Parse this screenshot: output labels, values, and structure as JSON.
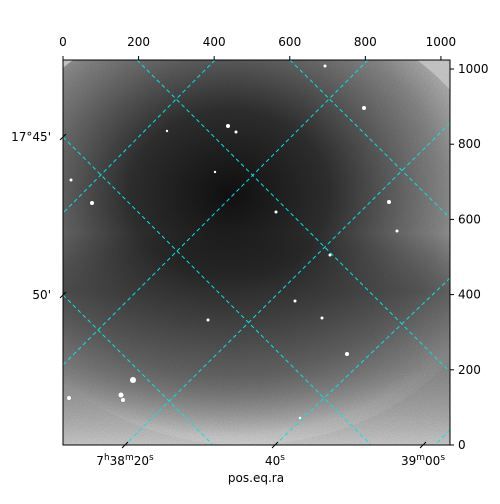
{
  "chart_data": {
    "type": "image",
    "xlabel": "pos.eq.ra",
    "x2lim": [
      0,
      1024
    ],
    "x2ticks": [
      0,
      200,
      400,
      600,
      800,
      1000
    ],
    "y2lim": [
      0,
      1024
    ],
    "y2ticks": [
      0,
      200,
      400,
      600,
      800,
      1000
    ],
    "ra_tick_labels": [
      "7h38m20s",
      "40s",
      "39m00s"
    ],
    "dec_tick_labels": [
      "17°45'",
      "50'"
    ],
    "grid_color": "#00e5e5"
  }
}
